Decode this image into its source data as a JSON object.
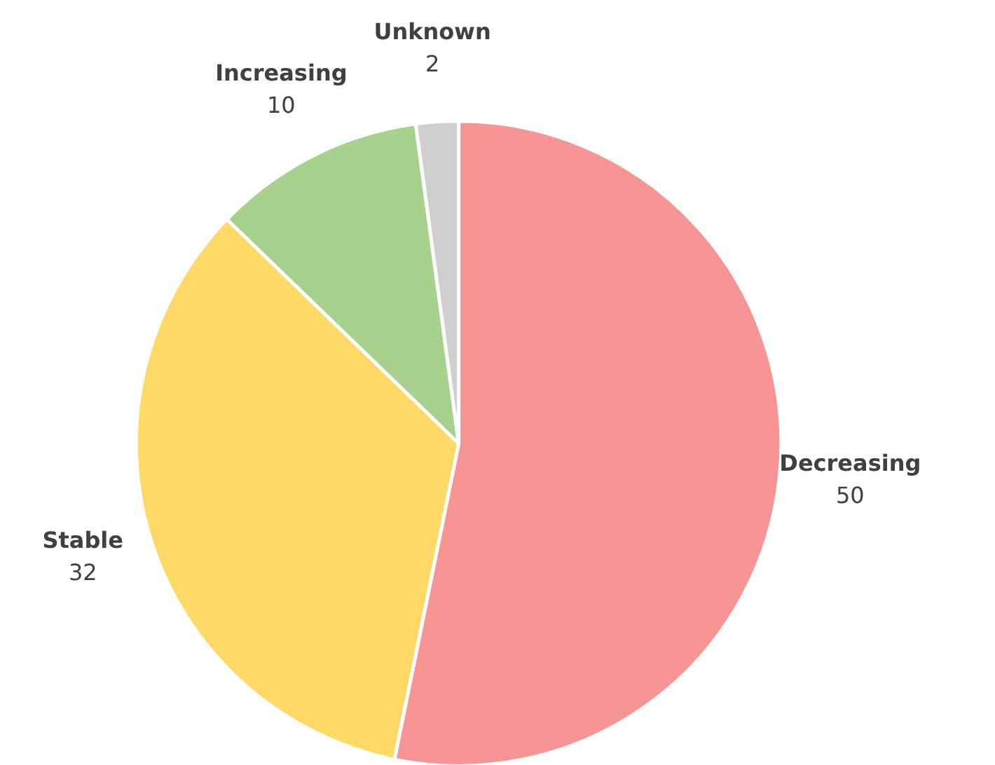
{
  "chart_data": {
    "type": "pie",
    "categories": [
      "Decreasing",
      "Stable",
      "Increasing",
      "Unknown"
    ],
    "values": [
      50,
      32,
      10,
      2
    ],
    "colors": [
      "#f79594",
      "#fed966",
      "#a9d18e",
      "#d0cece"
    ],
    "data_labels": true
  }
}
